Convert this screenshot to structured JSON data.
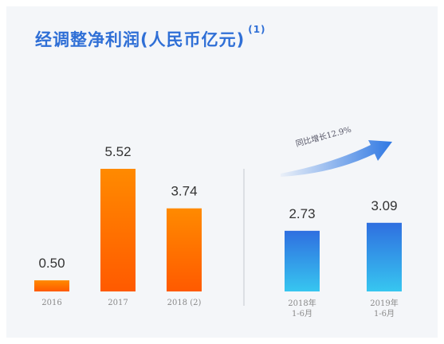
{
  "title": "经调整净利润(人民币亿元)",
  "title_note": "(1)",
  "annotation": "同比增长12.9%",
  "colors": {
    "title": "#2f6fd6",
    "annual_top": "#ff8a00",
    "annual_bottom": "#ff5a00",
    "half_top": "#2f6fe0",
    "half_bottom": "#37c6f0",
    "arrow": "#2f78e3"
  },
  "chart_data": [
    {
      "type": "bar",
      "group": "annual",
      "categories": [
        "2016",
        "2017",
        "2018 (2)"
      ],
      "values": [
        0.5,
        5.52,
        3.74
      ],
      "value_labels": [
        "0.50",
        "5.52",
        "3.74"
      ]
    },
    {
      "type": "bar",
      "group": "first-half",
      "categories": [
        "2018年\n1-6月",
        "2019年\n1-6月"
      ],
      "values": [
        2.73,
        3.09
      ],
      "value_labels": [
        "2.73",
        "3.09"
      ]
    }
  ]
}
